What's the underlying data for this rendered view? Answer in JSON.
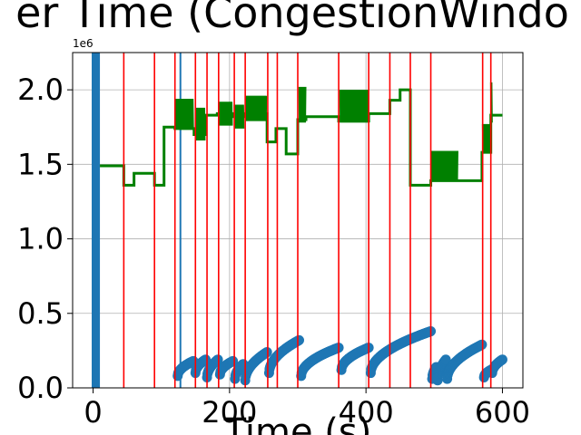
{
  "chart_data": {
    "type": "line",
    "title": "er Time (CongestionWindo",
    "xlabel": "Time (s)",
    "ylabel": "",
    "y_offset_label": "1e6",
    "xlim": [
      -30,
      630
    ],
    "ylim": [
      0,
      2250000
    ],
    "x_ticks": [
      0,
      200,
      400,
      600
    ],
    "x_tick_labels": [
      "0",
      "200",
      "400",
      "600"
    ],
    "y_ticks": [
      0,
      500000,
      1000000,
      1500000,
      2000000
    ],
    "y_tick_labels": [
      "0.0",
      "0.5",
      "1.0",
      "1.5",
      "2.0"
    ],
    "grid": true,
    "colors": {
      "bytes": "#1f77b4",
      "cwnd": "#008000",
      "events": "#ff0000",
      "grid": "#b0b0b0"
    },
    "series": [
      {
        "style": "scatter",
        "color": "#1f77b4",
        "startup_burst": {
          "x_range": [
            0,
            8
          ],
          "y_range": [
            0,
            2250000
          ]
        },
        "late_spike": {
          "x": 128,
          "y_range": [
            0,
            2250000
          ]
        },
        "segments": [
          {
            "x0": 124,
            "x1": 147,
            "y0": 80000,
            "y1": 180000
          },
          {
            "x0": 150,
            "x1": 165,
            "y0": 100000,
            "y1": 190000
          },
          {
            "x0": 167,
            "x1": 183,
            "y0": 70000,
            "y1": 190000
          },
          {
            "x0": 186,
            "x1": 205,
            "y0": 90000,
            "y1": 180000
          },
          {
            "x0": 208,
            "x1": 220,
            "y0": 60000,
            "y1": 160000
          },
          {
            "x0": 223,
            "x1": 255,
            "y0": 50000,
            "y1": 240000
          },
          {
            "x0": 258,
            "x1": 302,
            "y0": 100000,
            "y1": 320000
          },
          {
            "x0": 305,
            "x1": 360,
            "y0": 80000,
            "y1": 270000
          },
          {
            "x0": 364,
            "x1": 404,
            "y0": 120000,
            "y1": 270000
          },
          {
            "x0": 407,
            "x1": 495,
            "y0": 100000,
            "y1": 380000
          },
          {
            "x0": 497,
            "x1": 503,
            "y0": 60000,
            "y1": 140000
          },
          {
            "x0": 505,
            "x1": 517,
            "y0": 50000,
            "y1": 190000
          },
          {
            "x0": 519,
            "x1": 570,
            "y0": 60000,
            "y1": 290000
          },
          {
            "x0": 573,
            "x1": 583,
            "y0": 70000,
            "y1": 120000
          },
          {
            "x0": 585,
            "x1": 600,
            "y0": 100000,
            "y1": 190000
          }
        ]
      },
      {
        "style": "line",
        "color": "#008000",
        "steps": [
          {
            "x0": 10,
            "x1": 45,
            "y": 1490000
          },
          {
            "x0": 45,
            "x1": 60,
            "y": 1360000
          },
          {
            "x0": 60,
            "x1": 90,
            "y": 1440000
          },
          {
            "x0": 90,
            "x1": 104,
            "y": 1360000
          },
          {
            "x0": 104,
            "x1": 120,
            "y": 1750000
          },
          {
            "x0": 120,
            "x1": 148,
            "y": 1740000
          },
          {
            "x0": 148,
            "x1": 165,
            "y": 1700000
          },
          {
            "x0": 165,
            "x1": 182,
            "y": 1830000
          },
          {
            "x0": 182,
            "x1": 205,
            "y": 1840000
          },
          {
            "x0": 205,
            "x1": 222,
            "y": 1820000
          },
          {
            "x0": 222,
            "x1": 255,
            "y": 1840000
          },
          {
            "x0": 255,
            "x1": 268,
            "y": 1650000
          },
          {
            "x0": 268,
            "x1": 283,
            "y": 1740000
          },
          {
            "x0": 283,
            "x1": 300,
            "y": 1570000
          },
          {
            "x0": 300,
            "x1": 312,
            "y": 1800000
          },
          {
            "x0": 312,
            "x1": 360,
            "y": 1820000
          },
          {
            "x0": 360,
            "x1": 404,
            "y": 1790000
          },
          {
            "x0": 404,
            "x1": 435,
            "y": 1840000
          },
          {
            "x0": 435,
            "x1": 450,
            "y": 1930000
          },
          {
            "x0": 450,
            "x1": 465,
            "y": 2000000
          },
          {
            "x0": 465,
            "x1": 495,
            "y": 1360000
          },
          {
            "x0": 495,
            "x1": 570,
            "y": 1390000
          },
          {
            "x0": 570,
            "x1": 583,
            "y": 1580000
          },
          {
            "x0": 583,
            "x1": 600,
            "y": 1830000
          }
        ],
        "oscillations": [
          {
            "x0": 121,
            "x1": 147,
            "low": 1740000,
            "high": 1940000
          },
          {
            "x0": 150,
            "x1": 164,
            "low": 1660000,
            "high": 1880000
          },
          {
            "x0": 184,
            "x1": 204,
            "low": 1760000,
            "high": 1920000
          },
          {
            "x0": 207,
            "x1": 221,
            "low": 1740000,
            "high": 1900000
          },
          {
            "x0": 224,
            "x1": 254,
            "low": 1790000,
            "high": 1960000
          },
          {
            "x0": 302,
            "x1": 312,
            "low": 1780000,
            "high": 2020000
          },
          {
            "x0": 362,
            "x1": 403,
            "low": 1780000,
            "high": 2000000
          },
          {
            "x0": 496,
            "x1": 535,
            "low": 1390000,
            "high": 1590000
          },
          {
            "x0": 571,
            "x1": 582,
            "low": 1580000,
            "high": 1770000
          },
          {
            "x0": 583,
            "x1": 585,
            "low": 1780000,
            "high": 2050000
          }
        ]
      }
    ],
    "vertical_lines": [
      45,
      90,
      120,
      150,
      167,
      184,
      207,
      223,
      256,
      270,
      300,
      360,
      404,
      435,
      465,
      495,
      571,
      583
    ]
  }
}
